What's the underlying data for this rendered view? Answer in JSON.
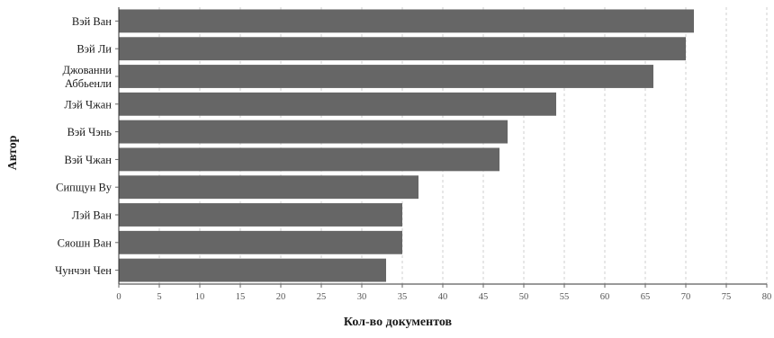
{
  "chart_data": {
    "type": "bar",
    "orientation": "horizontal",
    "categories": [
      "Вэй Ван",
      "Вэй Ли",
      "Джованни Аббьенли",
      "Лэй Чжан",
      "Вэй Чэнь",
      "Вэй Чжан",
      "Сипщун Ву",
      "Лэй Ван",
      "Сяошн Ван",
      "Чунчэн Чен"
    ],
    "values": [
      71,
      70,
      66,
      54,
      48,
      47,
      37,
      35,
      35,
      33
    ],
    "xlabel": "Кол-во документов",
    "ylabel": "Автор",
    "xlim": [
      0,
      80
    ],
    "xticks": [
      "0",
      "5",
      "10",
      "15",
      "20",
      "25",
      "30",
      "35",
      "40",
      "45",
      "50",
      "55",
      "60",
      "65",
      "70",
      "75",
      "80"
    ],
    "grid": "vertical dashed",
    "bar_color": "#666666"
  }
}
